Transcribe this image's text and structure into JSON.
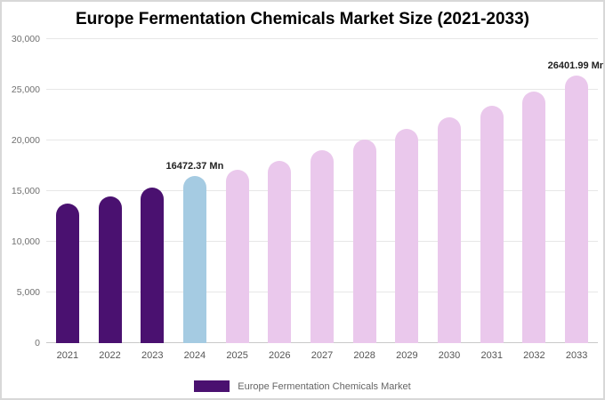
{
  "title": "Europe Fermentation Chemicals Market Size (2021-2033)",
  "legend": {
    "label": "Europe Fermentation Chemicals Market",
    "swatch_color": "#4a1170"
  },
  "colors": {
    "historical_bar": "#4a1170",
    "current_year_bar": "#a5cbe2",
    "forecast_bar": "#eac8ec"
  },
  "chart_data": {
    "type": "bar",
    "title": "Europe Fermentation Chemicals Market Size (2021-2033)",
    "xlabel": "",
    "ylabel": "",
    "ylim": [
      0,
      30000
    ],
    "grid": true,
    "legend_position": "bottom",
    "categories": [
      "2021",
      "2022",
      "2023",
      "2024",
      "2025",
      "2026",
      "2027",
      "2028",
      "2029",
      "2030",
      "2031",
      "2032",
      "2033"
    ],
    "values": [
      13800,
      14500,
      15350,
      16472.37,
      17100,
      18000,
      19000,
      20050,
      21100,
      22250,
      23400,
      24800,
      26401.99
    ],
    "point_labels": [
      "",
      "",
      "",
      "16472.37 Mn",
      "",
      "",
      "",
      "",
      "",
      "",
      "",
      "",
      "26401.99 Mn"
    ],
    "point_colors": [
      "#4a1170",
      "#4a1170",
      "#4a1170",
      "#a5cbe2",
      "#eac8ec",
      "#eac8ec",
      "#eac8ec",
      "#eac8ec",
      "#eac8ec",
      "#eac8ec",
      "#eac8ec",
      "#eac8ec",
      "#eac8ec"
    ],
    "yticks": [
      {
        "value": 0,
        "label": "0"
      },
      {
        "value": 5000,
        "label": "5,000"
      },
      {
        "value": 10000,
        "label": "10,000"
      },
      {
        "value": 15000,
        "label": "15,000"
      },
      {
        "value": 20000,
        "label": "20,000"
      },
      {
        "value": 25000,
        "label": "25,000"
      },
      {
        "value": 30000,
        "label": "30,000"
      }
    ]
  }
}
